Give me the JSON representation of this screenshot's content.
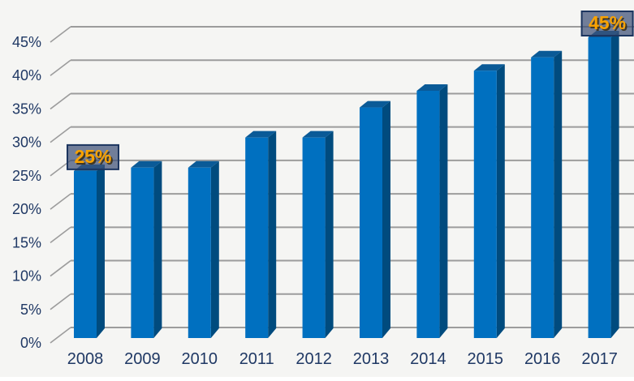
{
  "chart_data": {
    "type": "bar",
    "style": "3d-column",
    "title": "",
    "categories": [
      "2008",
      "2009",
      "2010",
      "2011",
      "2012",
      "2013",
      "2014",
      "2015",
      "2016",
      "2017"
    ],
    "values": [
      25,
      25.5,
      25.5,
      30,
      30,
      34.5,
      37,
      40,
      42,
      45
    ],
    "unit": "%",
    "xlabel": "",
    "ylabel": "",
    "ylim": [
      0,
      45
    ],
    "ytick_step": 5,
    "yticks": [
      {
        "value": 0,
        "label": "0%"
      },
      {
        "value": 5,
        "label": "5%"
      },
      {
        "value": 10,
        "label": "10%"
      },
      {
        "value": 15,
        "label": "15%"
      },
      {
        "value": 20,
        "label": "20%"
      },
      {
        "value": 25,
        "label": "25%"
      },
      {
        "value": 30,
        "label": "30%"
      },
      {
        "value": 35,
        "label": "35%"
      },
      {
        "value": 40,
        "label": "40%"
      },
      {
        "value": 45,
        "label": "45%"
      }
    ],
    "grid": true,
    "legend": false,
    "annotations": [
      {
        "category": "2008",
        "label": "25%"
      },
      {
        "category": "2017",
        "label": "45%"
      }
    ],
    "colors": {
      "background": "#F5F5F3",
      "gridline": "#9C9C9C",
      "axis_text": "#1F3864",
      "bar_front": "#0070C0",
      "bar_top": "#0A5A97",
      "bar_side": "#004B7E",
      "callout_fill": "rgba(62,80,118,0.72)",
      "callout_border": "#1C355F",
      "callout_text": "#F9A200",
      "callout_text_shadow": "rgba(55,42,15,0.85)"
    }
  }
}
